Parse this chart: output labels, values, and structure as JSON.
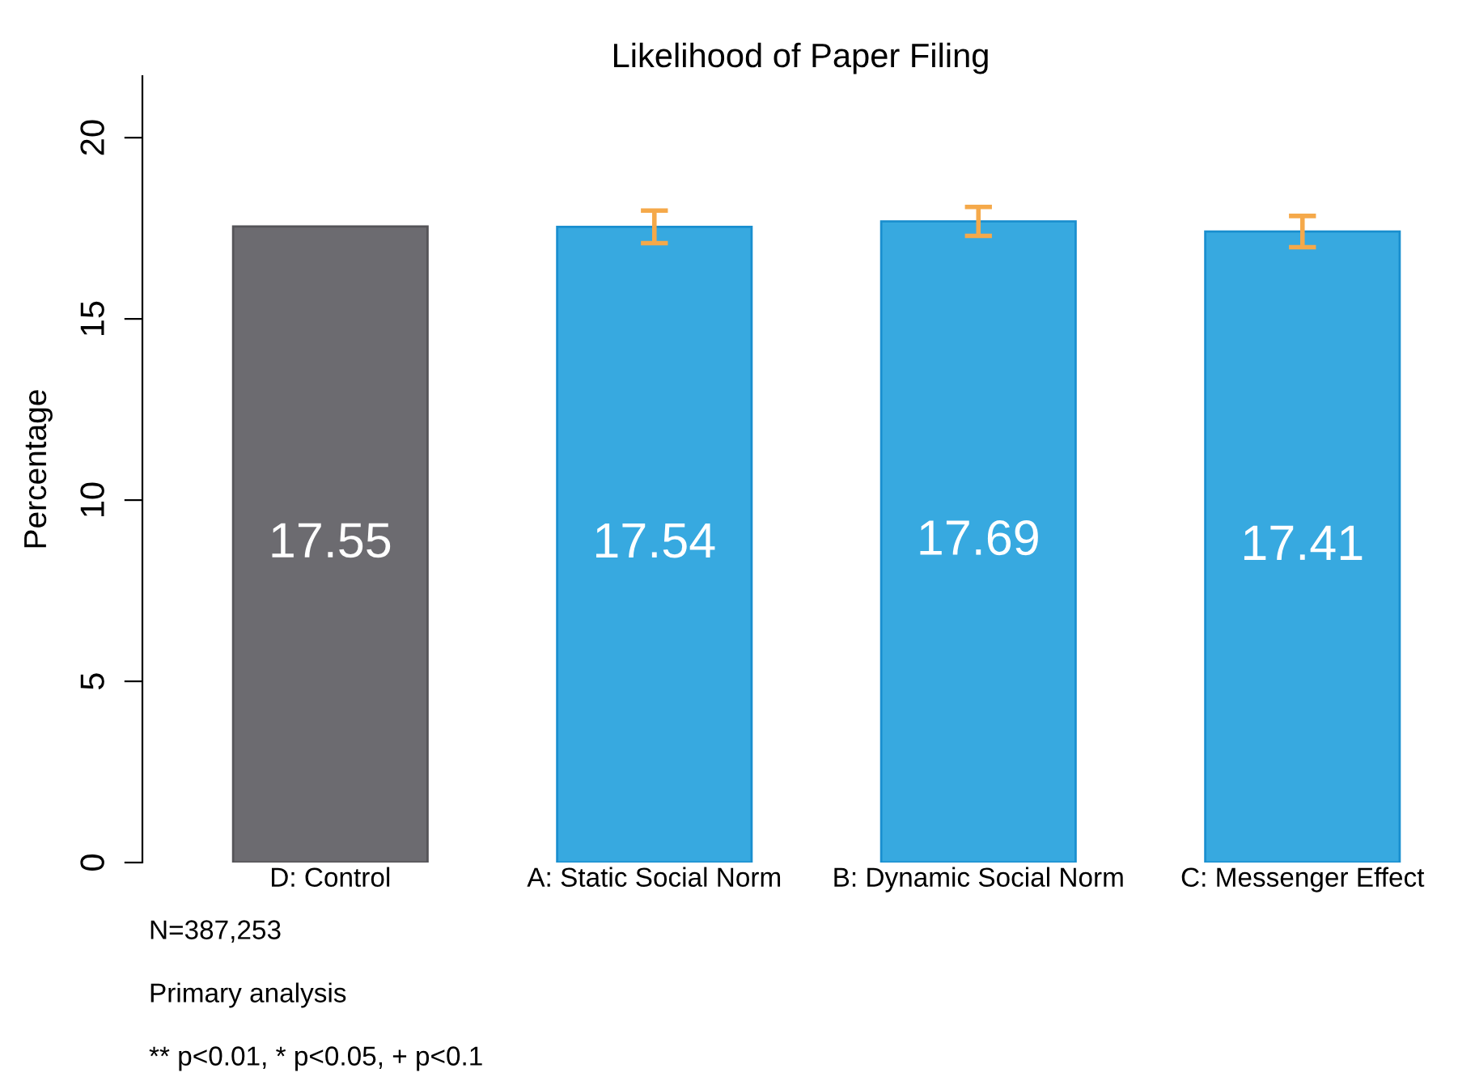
{
  "chart_data": {
    "type": "bar",
    "title": "Likelihood of Paper Filing",
    "ylabel": "Percentage",
    "categories": [
      "D: Control",
      "A: Static Social Norm",
      "B: Dynamic Social Norm",
      "C: Messenger Effect"
    ],
    "values": [
      17.55,
      17.54,
      17.69,
      17.41
    ],
    "colors": [
      "#6c6b70",
      "#37a9e0",
      "#37a9e0",
      "#37a9e0"
    ],
    "errors": [
      null,
      0.45,
      0.4,
      0.43
    ],
    "ylim": [
      0,
      21.7
    ],
    "yticks": [
      0,
      5,
      10,
      15,
      20
    ],
    "grid": false,
    "data_labels": true,
    "annotations": [
      "N=387,253",
      "Primary analysis",
      "** p<0.01, * p<0.05, + p<0.1"
    ]
  }
}
